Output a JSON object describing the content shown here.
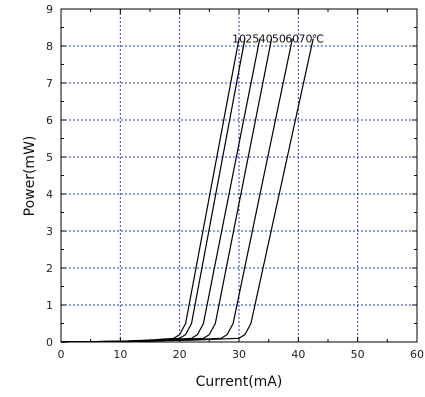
{
  "chart_data": {
    "type": "line",
    "xlabel": "Current(mA)",
    "ylabel": "Power(mW)",
    "xlim": [
      0,
      60
    ],
    "ylim": [
      0,
      9
    ],
    "x_ticks": [
      0,
      10,
      20,
      30,
      40,
      50,
      60
    ],
    "y_ticks": [
      0,
      1,
      2,
      3,
      4,
      5,
      6,
      7,
      8,
      9
    ],
    "grid": true,
    "line_color": "#000000",
    "grid_color": "#1f3fbf",
    "series_labels": [
      "10",
      "25",
      "40",
      "50",
      "60",
      "70",
      "℃"
    ],
    "series": [
      {
        "name": "10",
        "x": [
          0,
          10,
          15,
          19,
          20,
          21,
          30
        ],
        "y": [
          0,
          0.02,
          0.05,
          0.1,
          0.2,
          0.5,
          8.2
        ]
      },
      {
        "name": "25",
        "x": [
          0,
          10,
          16,
          20,
          21,
          22,
          31
        ],
        "y": [
          0,
          0.02,
          0.05,
          0.1,
          0.2,
          0.5,
          8.2
        ]
      },
      {
        "name": "40",
        "x": [
          0,
          10,
          17,
          22,
          23,
          24,
          33.5
        ],
        "y": [
          0,
          0.02,
          0.05,
          0.1,
          0.2,
          0.5,
          8.2
        ]
      },
      {
        "name": "50",
        "x": [
          0,
          10,
          18,
          24,
          25,
          26,
          35.5
        ],
        "y": [
          0,
          0.02,
          0.05,
          0.1,
          0.2,
          0.5,
          8.2
        ]
      },
      {
        "name": "60",
        "x": [
          0,
          10,
          20,
          27,
          28,
          29,
          39
        ],
        "y": [
          0,
          0.02,
          0.05,
          0.1,
          0.2,
          0.5,
          8.2
        ]
      },
      {
        "name": "70",
        "x": [
          0,
          10,
          22,
          30,
          31,
          32,
          42.5
        ],
        "y": [
          0,
          0.02,
          0.05,
          0.1,
          0.2,
          0.5,
          8.2
        ]
      }
    ]
  }
}
